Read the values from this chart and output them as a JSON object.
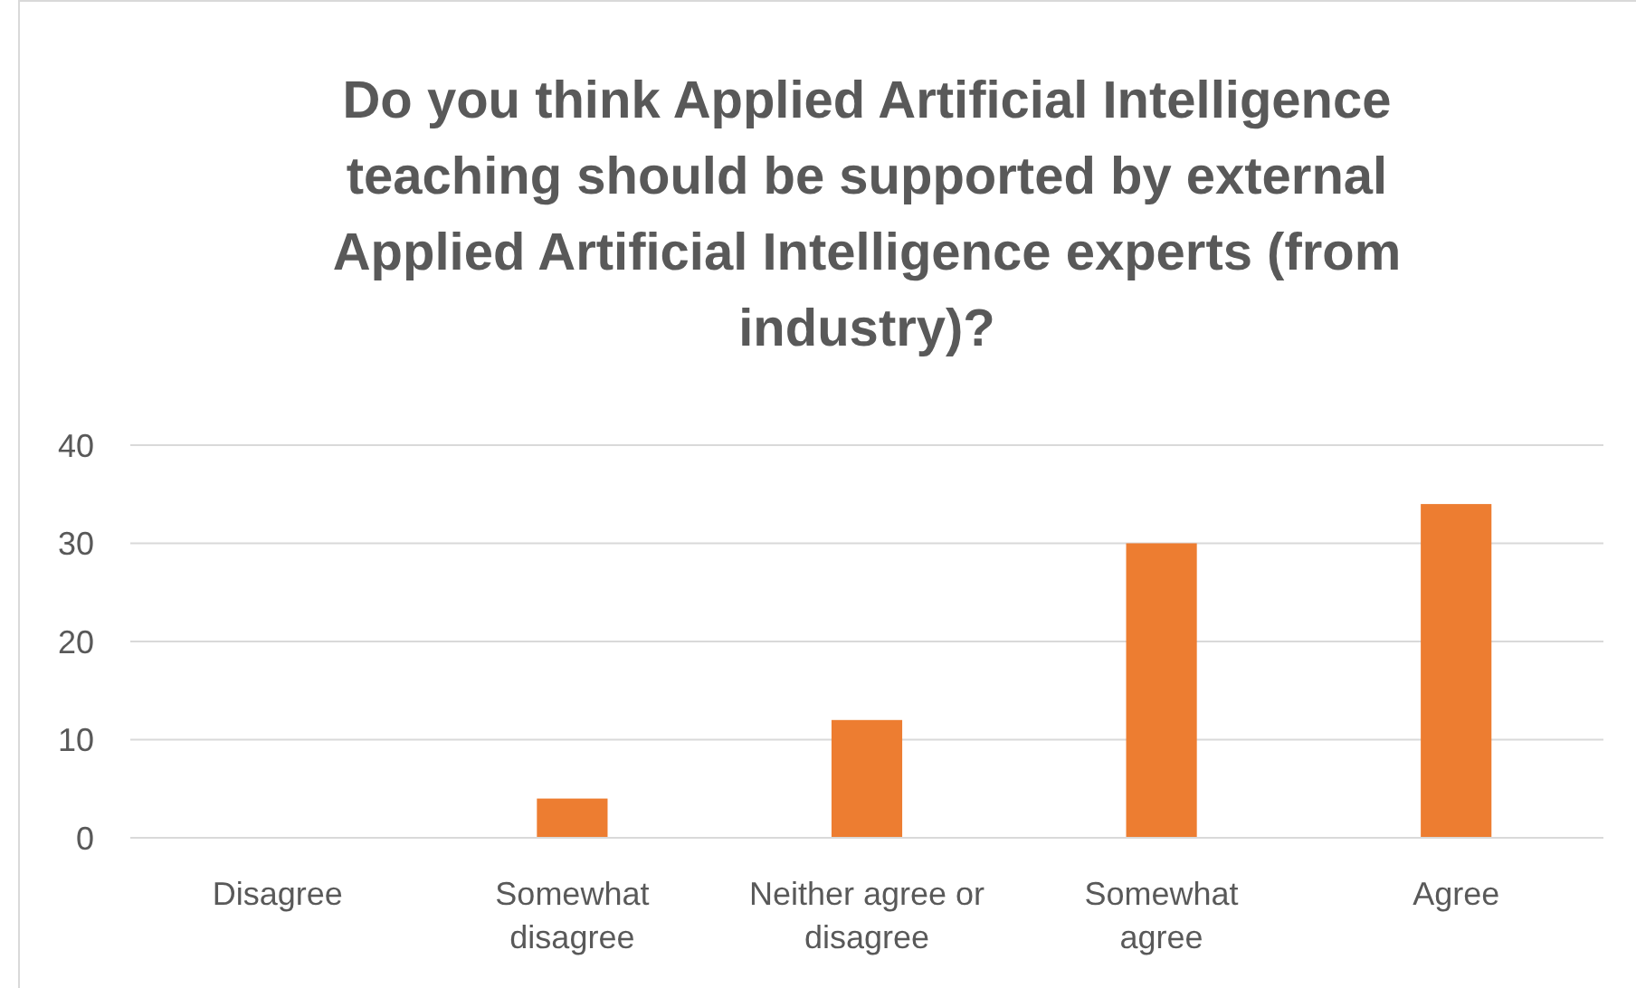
{
  "chart_data": {
    "type": "bar",
    "title": "Do you think Applied Artificial Intelligence teaching should be supported by external Applied Artificial Intelligence experts (from industry)?",
    "categories": [
      "Disagree",
      "Somewhat disagree",
      "Neither agree or disagree",
      "Somewhat agree",
      "Agree"
    ],
    "values": [
      0,
      4,
      12,
      30,
      34
    ],
    "color": "#ed7d31",
    "ylim": [
      0,
      40
    ],
    "yticks": [
      0,
      10,
      20,
      30,
      40
    ],
    "grid": "y"
  }
}
